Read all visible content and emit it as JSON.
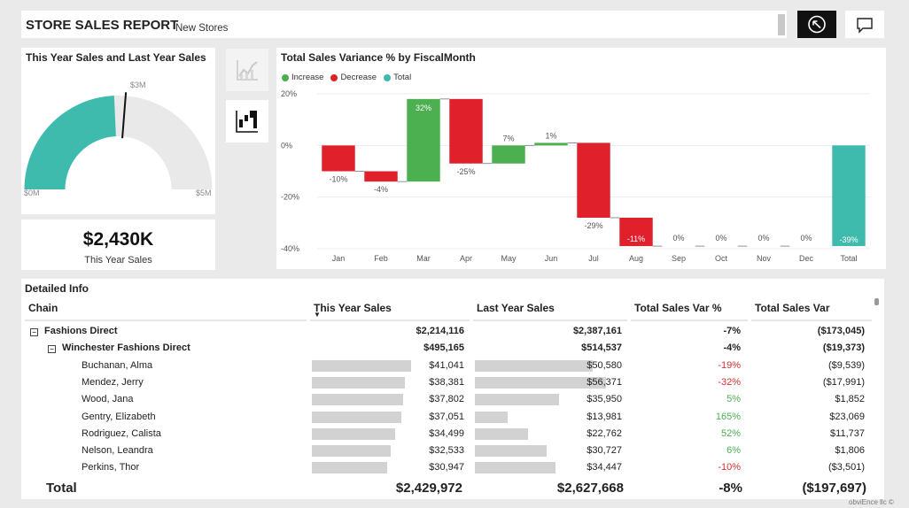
{
  "header": {
    "title": "STORE SALES REPORT",
    "subtitle": "New Stores"
  },
  "gauge": {
    "title": "This Year Sales and Last Year Sales",
    "min_label": "$0M",
    "max_label": "$5M",
    "target_label": "$3M",
    "value_fraction": 0.486,
    "target_fraction": 0.525,
    "fill_color": "#3fbbad",
    "track_color": "#e9e9e9"
  },
  "kpi": {
    "value": "$2,430K",
    "caption": "This Year Sales"
  },
  "toggles": [
    {
      "name": "line-chart-icon"
    },
    {
      "name": "waterfall-chart-icon"
    }
  ],
  "chart_data": {
    "type": "waterfall",
    "title": "Total Sales Variance % by FiscalMonth",
    "legend": [
      {
        "label": "Increase",
        "color": "#4caf50"
      },
      {
        "label": "Decrease",
        "color": "#e0202a"
      },
      {
        "label": "Total",
        "color": "#3fbbad"
      }
    ],
    "categories": [
      "Jan",
      "Feb",
      "Mar",
      "Apr",
      "May",
      "Jun",
      "Jul",
      "Aug",
      "Sep",
      "Oct",
      "Nov",
      "Dec",
      "Total"
    ],
    "values": [
      -10,
      -4,
      32,
      -25,
      7,
      1,
      -29,
      -11,
      0,
      0,
      0,
      0,
      -39
    ],
    "data_labels": [
      "-10%",
      "-4%",
      "32%",
      "-25%",
      "7%",
      "1%",
      "-29%",
      "-11%",
      "0%",
      "0%",
      "0%",
      "0%",
      "-39%"
    ],
    "y_ticks": [
      "20%",
      "0%",
      "-20%",
      "-40%"
    ],
    "y_tick_values": [
      20,
      0,
      -20,
      -40
    ],
    "ylim": [
      -40,
      20
    ],
    "legend_position": "top-left"
  },
  "table": {
    "title": "Detailed  Info",
    "headers": [
      "Chain",
      "This Year Sales",
      "Last Year Sales",
      "Total Sales Var %",
      "Total Sales Var"
    ],
    "sort_indicator": "▼",
    "rows": [
      {
        "level": 0,
        "name": "Fashions Direct",
        "ty": "$2,214,116",
        "ly": "$2,387,161",
        "varp": "-7%",
        "var": "($173,045)",
        "bold": true
      },
      {
        "level": 1,
        "name": "Winchester Fashions Direct",
        "ty": "$495,165",
        "ly": "$514,537",
        "varp": "-4%",
        "var": "($19,373)",
        "bold": true
      },
      {
        "level": 2,
        "name": "Buchanan, Alma",
        "ty": "$41,041",
        "ly": "$50,580",
        "varp": "-19%",
        "var": "($9,539)",
        "ty_val": 41041,
        "ly_val": 50580
      },
      {
        "level": 2,
        "name": "Mendez, Jerry",
        "ty": "$38,381",
        "ly": "$56,371",
        "varp": "-32%",
        "var": "($17,991)",
        "ty_val": 38381,
        "ly_val": 56371
      },
      {
        "level": 2,
        "name": "Wood, Jana",
        "ty": "$37,802",
        "ly": "$35,950",
        "varp": "5%",
        "var": "$1,852",
        "ty_val": 37802,
        "ly_val": 35950
      },
      {
        "level": 2,
        "name": "Gentry, Elizabeth",
        "ty": "$37,051",
        "ly": "$13,981",
        "varp": "165%",
        "var": "$23,069",
        "ty_val": 37051,
        "ly_val": 13981
      },
      {
        "level": 2,
        "name": "Rodriguez, Calista",
        "ty": "$34,499",
        "ly": "$22,762",
        "varp": "52%",
        "var": "$11,737",
        "ty_val": 34499,
        "ly_val": 22762
      },
      {
        "level": 2,
        "name": "Nelson, Leandra",
        "ty": "$32,533",
        "ly": "$30,727",
        "varp": "6%",
        "var": "$1,806",
        "ty_val": 32533,
        "ly_val": 30727
      },
      {
        "level": 2,
        "name": "Perkins, Thor",
        "ty": "$30,947",
        "ly": "$34,447",
        "varp": "-10%",
        "var": "($3,501)",
        "ty_val": 30947,
        "ly_val": 34447
      }
    ],
    "total": {
      "label": "Total",
      "ty": "$2,429,972",
      "ly": "$2,627,668",
      "varp": "-8%",
      "var": "($197,697)"
    },
    "colors": {
      "negative": "#d32f2f",
      "positive": "#4caf50"
    }
  },
  "watermark": "obviEnce llc ©"
}
